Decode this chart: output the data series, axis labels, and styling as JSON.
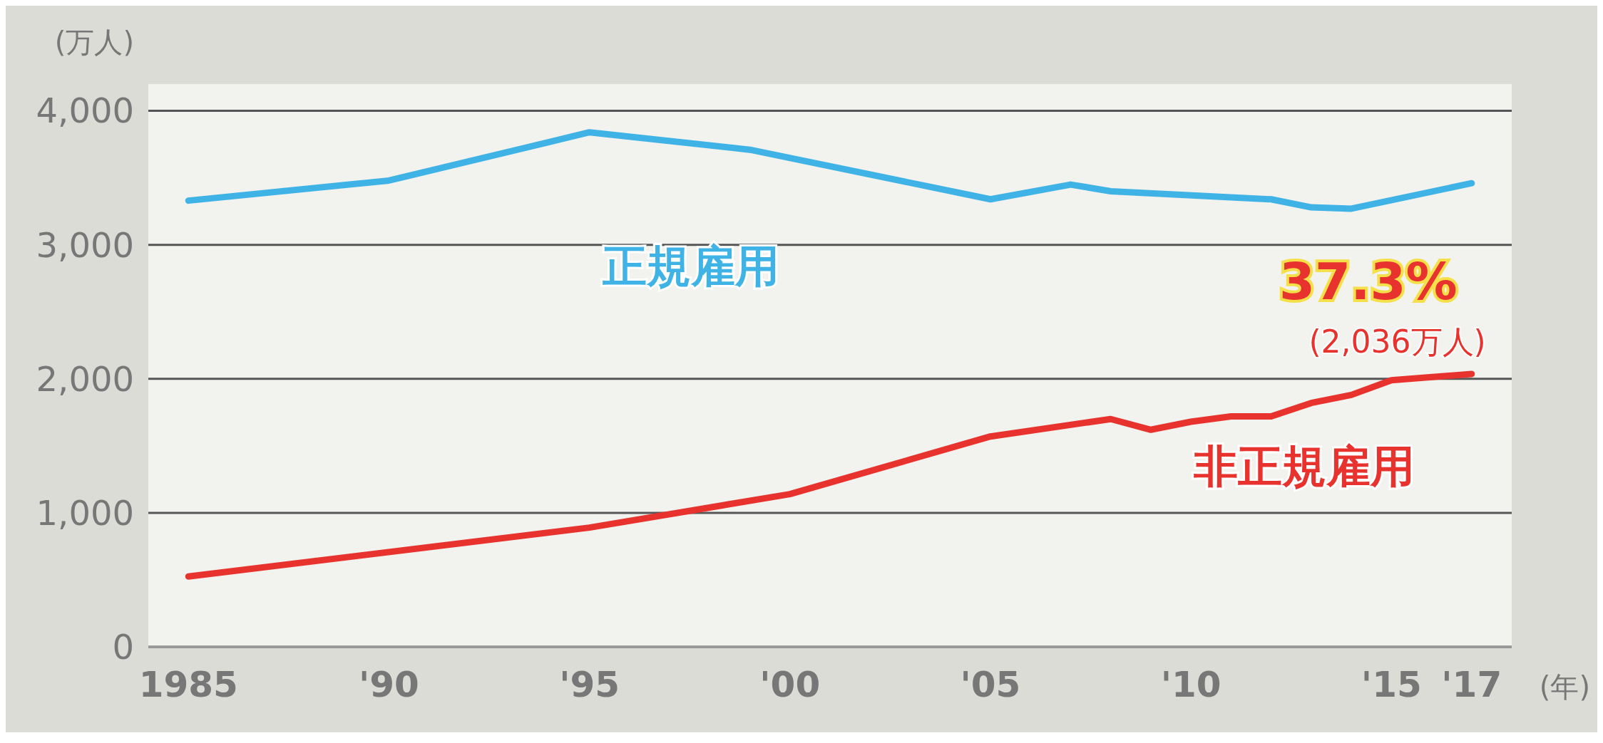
{
  "chart_data": {
    "type": "line",
    "ylabel": "(万人)",
    "xlabel": "(年)",
    "x": [
      1985,
      1990,
      1995,
      1999,
      2005,
      2007,
      2008,
      2012,
      2013,
      2014,
      2017
    ],
    "series": [
      {
        "name": "正規雇用",
        "color": "#3fb3e6",
        "values": [
          3330,
          3480,
          3840,
          3710,
          3340,
          3450,
          3400,
          3340,
          3280,
          3270,
          3460
        ]
      },
      {
        "name": "非正規雇用",
        "color": "#e8322e",
        "x": [
          1985,
          1995,
          2000,
          2005,
          2008,
          2009,
          2010,
          2011,
          2012,
          2013,
          2014,
          2015,
          2017
        ],
        "values": [
          525,
          890,
          1140,
          1570,
          1700,
          1620,
          1680,
          1720,
          1720,
          1820,
          1880,
          1990,
          2036
        ]
      }
    ],
    "xlim": [
      1984,
      2018
    ],
    "xticks": [
      {
        "value": 1985,
        "label": "1985"
      },
      {
        "value": 1990,
        "label": "'90"
      },
      {
        "value": 1995,
        "label": "'95"
      },
      {
        "value": 2000,
        "label": "'00"
      },
      {
        "value": 2005,
        "label": "'05"
      },
      {
        "value": 2010,
        "label": "'10"
      },
      {
        "value": 2015,
        "label": "'15"
      },
      {
        "value": 2017,
        "label": "'17"
      }
    ],
    "ylim": [
      0,
      4200
    ],
    "yticks": [
      0,
      {
        "value": 1000,
        "label": "1,000"
      },
      {
        "value": 2000,
        "label": "2,000"
      },
      {
        "value": 3000,
        "label": "3,000"
      },
      {
        "value": 4000,
        "label": "4,000"
      }
    ],
    "grid": "y",
    "marker": "none",
    "line_style": "solid",
    "annotations": [
      {
        "text": "37.3%",
        "x": 2017,
        "y": 2036
      },
      {
        "text": "(2,036万人)",
        "x": 2017,
        "y": 2036
      }
    ]
  }
}
